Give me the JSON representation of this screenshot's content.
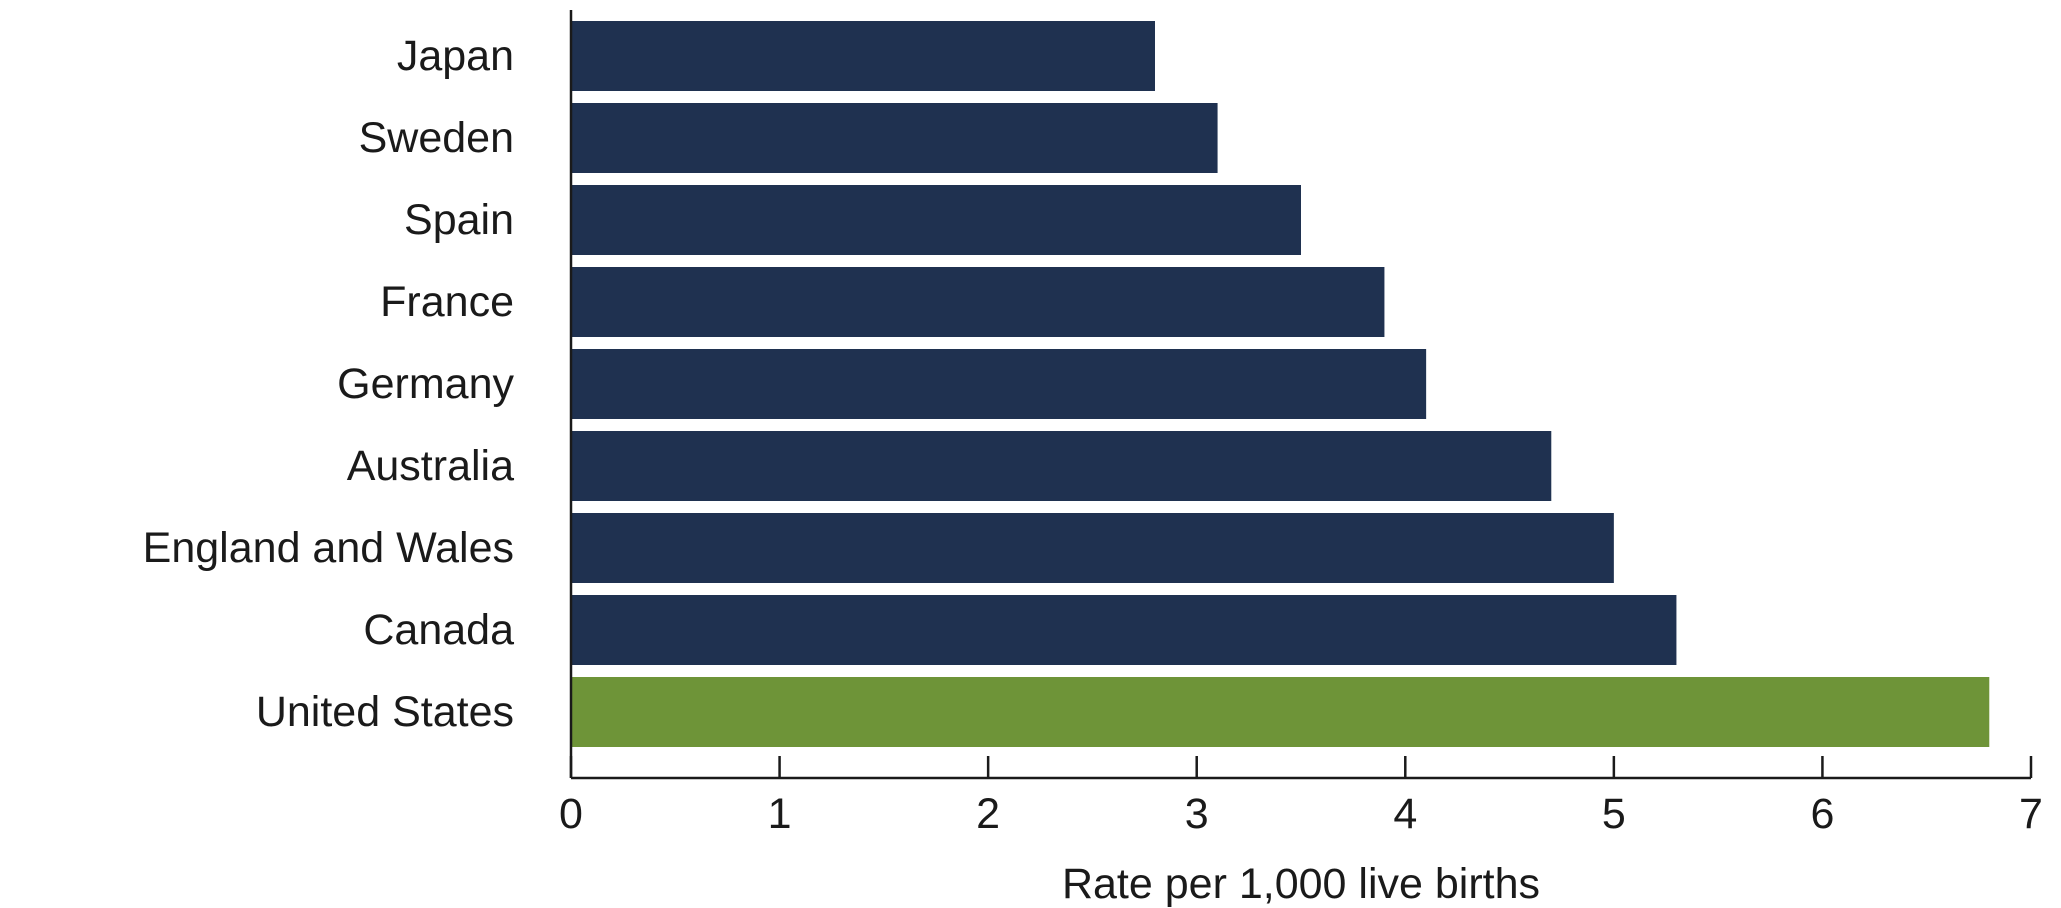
{
  "chart_data": {
    "type": "bar",
    "orientation": "horizontal",
    "categories": [
      "Japan",
      "Sweden",
      "Spain",
      "France",
      "Germany",
      "Australia",
      "England and Wales",
      "Canada",
      "United States"
    ],
    "values": [
      2.8,
      3.1,
      3.5,
      3.9,
      4.1,
      4.7,
      5.0,
      5.3,
      6.8
    ],
    "bar_colors": [
      "#1f3150",
      "#1f3150",
      "#1f3150",
      "#1f3150",
      "#1f3150",
      "#1f3150",
      "#1f3150",
      "#1f3150",
      "#6e9438"
    ],
    "xlabel": "Rate per 1,000 live births",
    "ylabel": "",
    "title": "",
    "xlim": [
      0,
      7
    ],
    "xticks": [
      "0",
      "1",
      "2",
      "3",
      "4",
      "5",
      "6",
      "7"
    ],
    "grid": false,
    "legend": "none"
  }
}
